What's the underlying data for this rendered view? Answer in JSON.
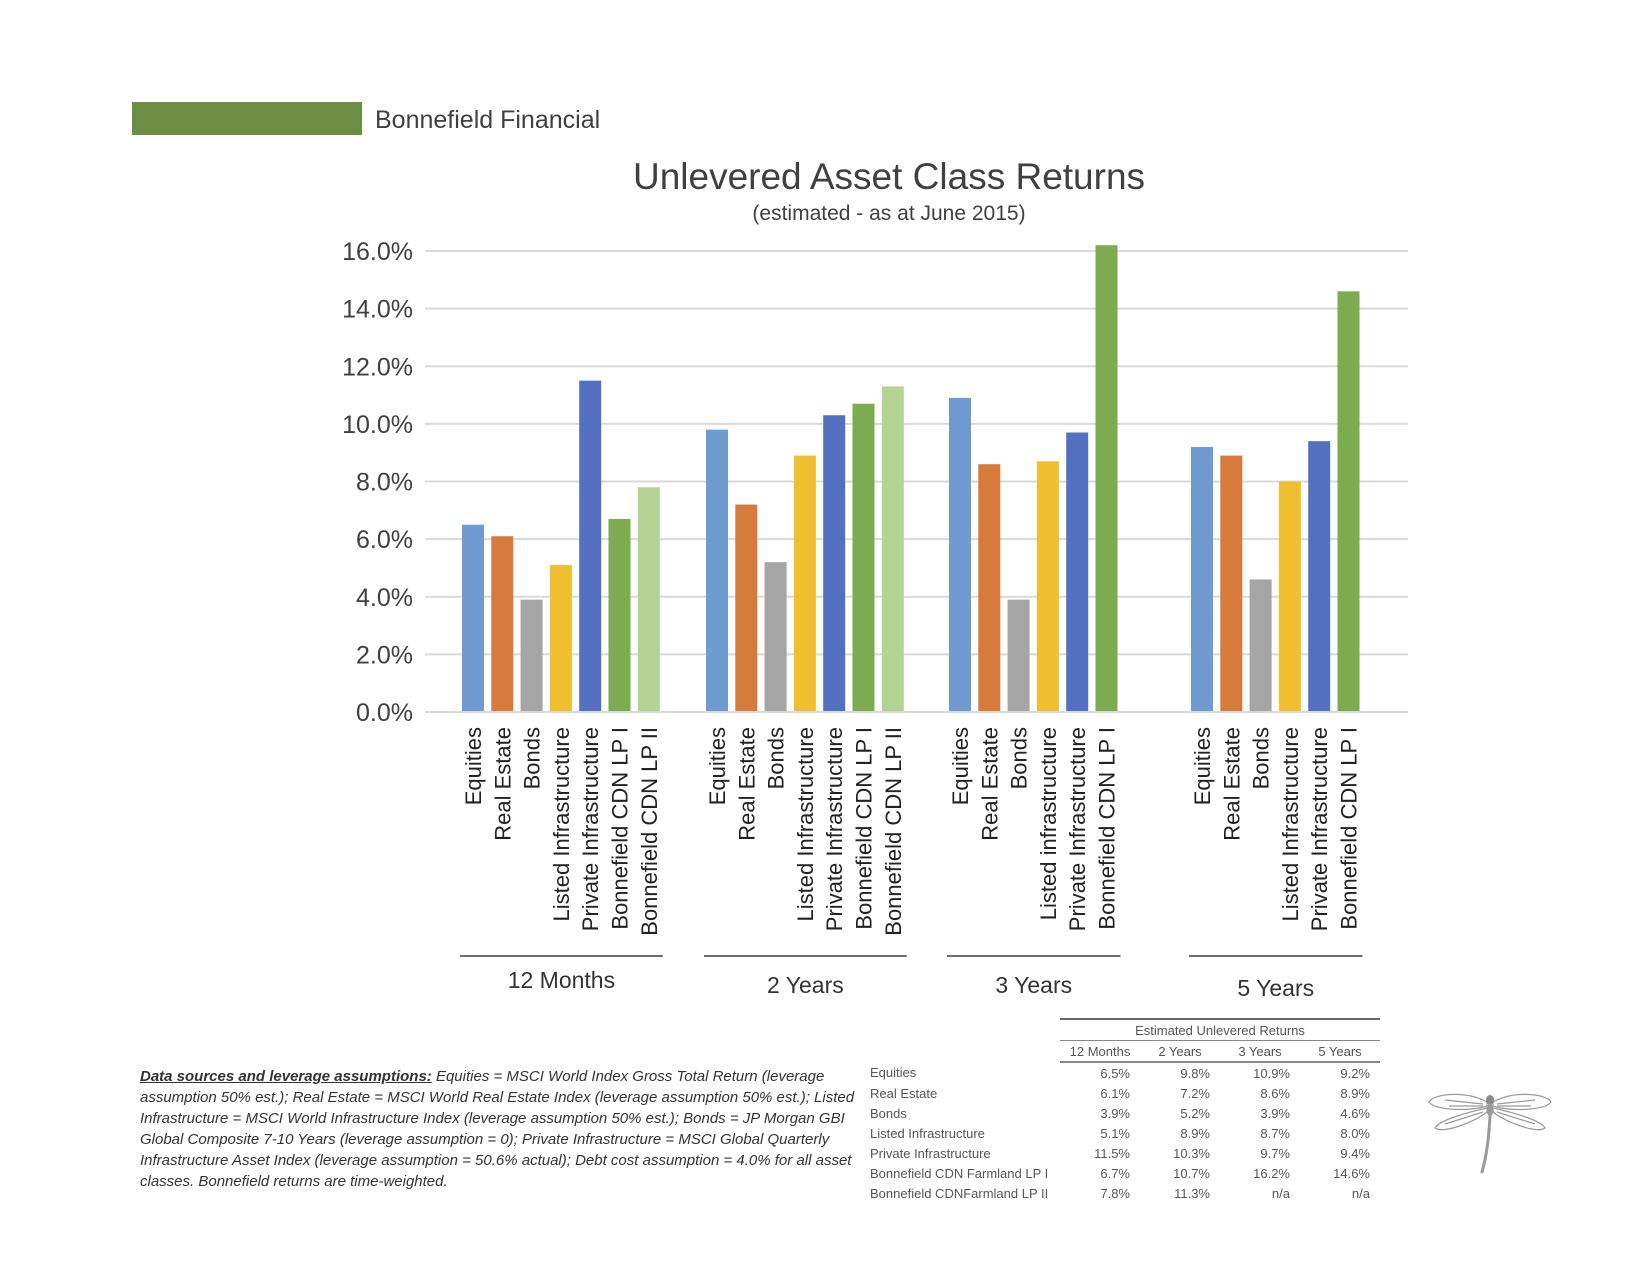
{
  "header": {
    "brand": "Bonnefield Financial",
    "brand_color": "#6b8e43"
  },
  "chart_data": {
    "type": "bar",
    "title": "Unlevered Asset Class Returns",
    "subtitle": "(estimated - as at June 2015)",
    "ylim": [
      0,
      16
    ],
    "yticks": [
      "0.0%",
      "2.0%",
      "4.0%",
      "6.0%",
      "8.0%",
      "10.0%",
      "12.0%",
      "14.0%",
      "16.0%"
    ],
    "grid": true,
    "colors": {
      "Equities": "#6f9bd1",
      "Real Estate": "#d77b3c",
      "Bonds": "#a5a5a5",
      "Listed Infrastructure": "#f0bf30",
      "Private Infrastructure": "#5470c0",
      "Bonnefield CDN LP I": "#7dab4f",
      "Bonnefield CDN LP II": "#b2d392"
    },
    "groups": [
      {
        "name": "12 Months",
        "bars": [
          {
            "label": "Equities",
            "value": 6.5
          },
          {
            "label": "Real Estate",
            "value": 6.1
          },
          {
            "label": "Bonds",
            "value": 3.9
          },
          {
            "label": "Listed Infrastructure",
            "value": 5.1
          },
          {
            "label": "Private Infrastructure",
            "value": 11.5
          },
          {
            "label": "Bonnefield CDN LP I",
            "value": 6.7
          },
          {
            "label": "Bonnefield CDN LP II",
            "value": 7.8
          }
        ]
      },
      {
        "name": "2 Years",
        "bars": [
          {
            "label": "Equities",
            "value": 9.8
          },
          {
            "label": "Real Estate",
            "value": 7.2
          },
          {
            "label": "Bonds",
            "value": 5.2
          },
          {
            "label": "Listed Infrastructure",
            "value": 8.9
          },
          {
            "label": "Private Infrastructure",
            "value": 10.3
          },
          {
            "label": "Bonnefield CDN LP I",
            "value": 10.7
          },
          {
            "label": "Bonnefield CDN LP II",
            "value": 11.3
          }
        ]
      },
      {
        "name": "3 Years",
        "bars": [
          {
            "label": "Equities",
            "value": 10.9
          },
          {
            "label": "Real Estate",
            "value": 8.6
          },
          {
            "label": "Bonds",
            "value": 3.9
          },
          {
            "label": "Listed infrastructure",
            "value": 8.7
          },
          {
            "label": "Private Infrastructure",
            "value": 9.7
          },
          {
            "label": "Bonnefield CDN LP I",
            "value": 16.2
          }
        ]
      },
      {
        "name": "5 Years",
        "bars": [
          {
            "label": "Equities",
            "value": 9.2
          },
          {
            "label": "Real Estate",
            "value": 8.9
          },
          {
            "label": "Bonds",
            "value": 4.6
          },
          {
            "label": "Listed Infrastructure",
            "value": 8.0
          },
          {
            "label": "Private Infrastructure",
            "value": 9.4
          },
          {
            "label": "Bonnefield CDN LP I",
            "value": 14.6
          }
        ]
      }
    ]
  },
  "notes": {
    "lead": "Data sources and leverage assumptions:",
    "text": " Equities = MSCI World Index Gross Total Return (leverage assumption 50% est.); Real Estate = MSCI World Real Estate Index (leverage assumption 50% est.); Listed Infrastructure = MSCI World Infrastructure Index (leverage assumption 50% est.); Bonds = JP Morgan GBI Global Composite 7-10 Years (leverage assumption = 0); Private Infrastructure = MSCI Global Quarterly Infrastructure Asset Index (leverage assumption = 50.6% actual); Debt cost assumption = 4.0% for all asset classes. Bonnefield returns are time-weighted."
  },
  "summary_table": {
    "caption": "Estimated Unlevered Returns",
    "columns": [
      "12 Months",
      "2 Years",
      "3 Years",
      "5 Years"
    ],
    "rows": [
      {
        "name": "Equities",
        "values": [
          "6.5%",
          "9.8%",
          "10.9%",
          "9.2%"
        ]
      },
      {
        "name": "Real Estate",
        "values": [
          "6.1%",
          "7.2%",
          "8.6%",
          "8.9%"
        ]
      },
      {
        "name": "Bonds",
        "values": [
          "3.9%",
          "5.2%",
          "3.9%",
          "4.6%"
        ]
      },
      {
        "name": "Listed Infrastructure",
        "values": [
          "5.1%",
          "8.9%",
          "8.7%",
          "8.0%"
        ]
      },
      {
        "name": "Private Infrastructure",
        "values": [
          "11.5%",
          "10.3%",
          "9.7%",
          "9.4%"
        ]
      },
      {
        "name": "Bonnefield CDN Farmland LP I",
        "values": [
          "6.7%",
          "10.7%",
          "16.2%",
          "14.6%"
        ]
      },
      {
        "name": "Bonnefield CDNFarmland LP II",
        "values": [
          "7.8%",
          "11.3%",
          "n/a",
          "n/a"
        ]
      }
    ]
  },
  "icons": {
    "logo": "dragonfly-icon"
  }
}
